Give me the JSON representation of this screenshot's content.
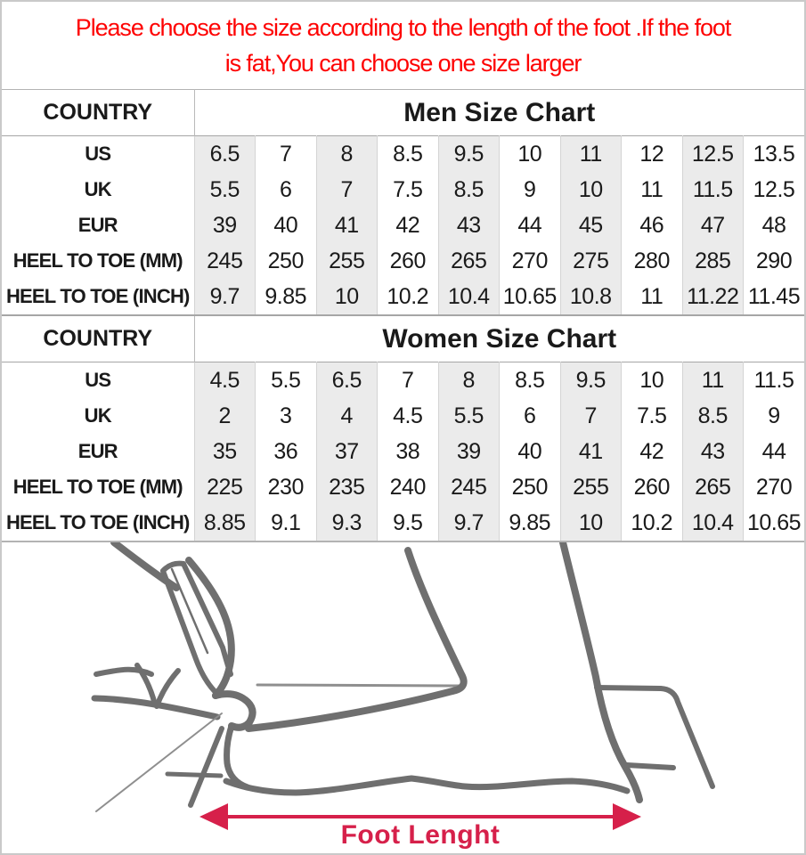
{
  "notice": {
    "line1": "Please choose the size according to the length of the foot .If the foot",
    "line2": "is fat,You can choose one size larger"
  },
  "men_chart": {
    "corner_label": "COUNTRY",
    "title": "Men Size Chart",
    "rows": [
      {
        "label": "US",
        "values": [
          "6.5",
          "7",
          "8",
          "8.5",
          "9.5",
          "10",
          "11",
          "12",
          "12.5",
          "13.5"
        ]
      },
      {
        "label": "UK",
        "values": [
          "5.5",
          "6",
          "7",
          "7.5",
          "8.5",
          "9",
          "10",
          "11",
          "11.5",
          "12.5"
        ]
      },
      {
        "label": "EUR",
        "values": [
          "39",
          "40",
          "41",
          "42",
          "43",
          "44",
          "45",
          "46",
          "47",
          "48"
        ]
      },
      {
        "label": "HEEL TO TOE (MM)",
        "values": [
          "245",
          "250",
          "255",
          "260",
          "265",
          "270",
          "275",
          "280",
          "285",
          "290"
        ]
      },
      {
        "label": "HEEL TO TOE (INCH)",
        "values": [
          "9.7",
          "9.85",
          "10",
          "10.2",
          "10.4",
          "10.65",
          "10.8",
          "11",
          "11.22",
          "11.45"
        ]
      }
    ]
  },
  "women_chart": {
    "corner_label": "COUNTRY",
    "title": "Women Size Chart",
    "rows": [
      {
        "label": "US",
        "values": [
          "4.5",
          "5.5",
          "6.5",
          "7",
          "8",
          "8.5",
          "9.5",
          "10",
          "11",
          "11.5"
        ]
      },
      {
        "label": "UK",
        "values": [
          "2",
          "3",
          "4",
          "4.5",
          "5.5",
          "6",
          "7",
          "7.5",
          "8.5",
          "9"
        ]
      },
      {
        "label": "EUR",
        "values": [
          "35",
          "36",
          "37",
          "38",
          "39",
          "40",
          "41",
          "42",
          "43",
          "44"
        ]
      },
      {
        "label": "HEEL TO TOE (MM)",
        "values": [
          "225",
          "230",
          "235",
          "240",
          "245",
          "250",
          "255",
          "260",
          "265",
          "270"
        ]
      },
      {
        "label": "HEEL TO TOE (INCH)",
        "values": [
          "8.85",
          "9.1",
          "9.3",
          "9.5",
          "9.7",
          "9.85",
          "10",
          "10.2",
          "10.4",
          "10.65"
        ]
      }
    ]
  },
  "diagram": {
    "label": "Foot Lenght"
  },
  "colors": {
    "notice_red": "#fe0202",
    "arrow_red": "#d6204a",
    "column_shade": "#ebebeb",
    "sketch_gray": "#6f6f6f"
  }
}
